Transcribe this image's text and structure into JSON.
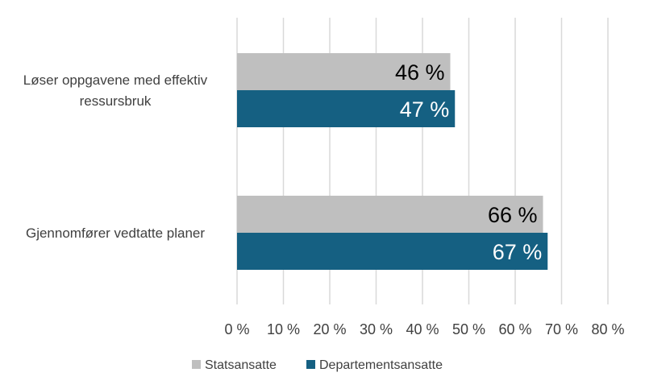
{
  "chart_data": {
    "type": "bar",
    "orientation": "horizontal",
    "categories": [
      "Løser oppgavene med effektiv ressursbruk",
      "Gjennomfører vedtatte planer"
    ],
    "category_label_lines": [
      [
        "Løser oppgavene med effektiv",
        "ressursbruk"
      ],
      [
        "Gjennomfører vedtatte planer"
      ]
    ],
    "series": [
      {
        "name": "Statsansatte",
        "values": [
          46,
          66
        ],
        "labels": [
          "46 %",
          "66 %"
        ],
        "color": "#bfbfbf",
        "label_color": "#000000"
      },
      {
        "name": "Departementsansatte",
        "values": [
          47,
          67
        ],
        "labels": [
          "47 %",
          "67 %"
        ],
        "color": "#156082",
        "label_color": "#ffffff"
      }
    ],
    "xlim": [
      0,
      80
    ],
    "xticks": [
      0,
      10,
      20,
      30,
      40,
      50,
      60,
      70,
      80
    ],
    "xtick_labels": [
      "0 %",
      "10 %",
      "20 %",
      "30 %",
      "40 %",
      "50 %",
      "60 %",
      "70 %",
      "80 %"
    ],
    "grid": true,
    "gridline_color": "#d9d9d9",
    "legend_position": "bottom",
    "title": "",
    "xlabel": "",
    "ylabel": ""
  }
}
